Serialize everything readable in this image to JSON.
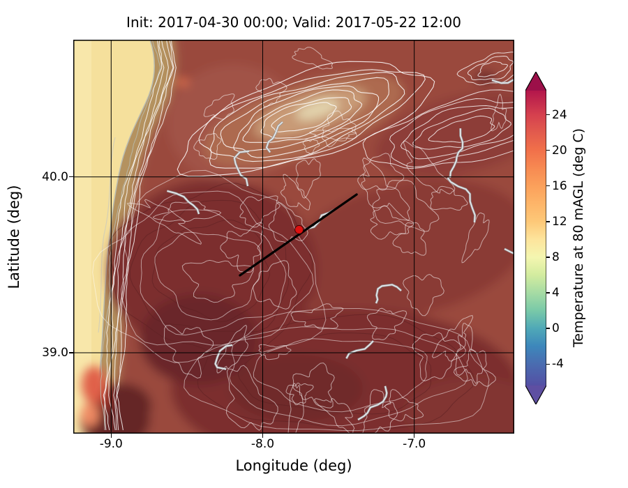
{
  "chart_data": {
    "type": "heatmap",
    "subtype": "filled_contour_map",
    "title": "Init: 2017-04-30 00:00; Valid: 2017-05-22 12:00",
    "xlabel": "Longitude (deg)",
    "ylabel": "Latitude (deg)",
    "x_range": [
      -9.25,
      -6.34
    ],
    "y_range": [
      38.54,
      40.78
    ],
    "xtick_labels": [
      "-9.0",
      "-8.0",
      "-7.0"
    ],
    "ytick_labels": [
      "40.0",
      "39.0"
    ],
    "grid": true,
    "colorbar": {
      "label": "Temperature at 80 mAGL (deg C)",
      "tick_labels": [
        "24",
        "20",
        "16",
        "12",
        "8",
        "4",
        "0",
        "-4"
      ],
      "vmin": -6.4,
      "vmax": 26.7,
      "colormap": "Spectral_r",
      "extend": "both",
      "extend_colors": {
        "over": "#9c1049",
        "under": "#5e4fa2"
      }
    },
    "cross_section_line": {
      "lon": [
        -8.15,
        -7.38
      ],
      "lat": [
        39.44,
        39.9
      ],
      "color": "#000000"
    },
    "marker": {
      "lon": -7.76,
      "lat": 39.7,
      "color": "#dd1111"
    },
    "field_summary": {
      "description": "Filled temperature contours over western Iberia: Atlantic strip along west edge ~10-13 C (pale yellow), coastal transition band ~14-18 C (tan/brown), interior plateau ~20-26 C (brick red to dark maroon), mountain ridge in upper middle ~15-18 C (lighter tan), warm orange coastal spots ~18-20 C near the southwest corner",
      "ocean_temp_c": 12,
      "interior_temp_c": 24,
      "ridge_temp_c": 16
    }
  }
}
